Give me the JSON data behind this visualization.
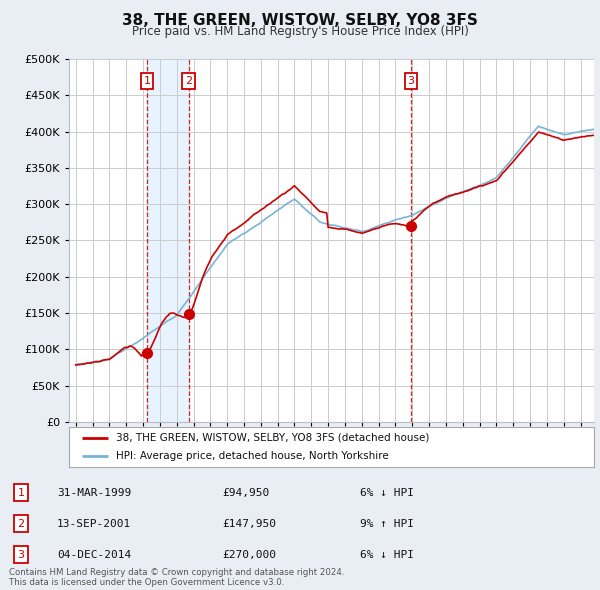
{
  "title": "38, THE GREEN, WISTOW, SELBY, YO8 3FS",
  "subtitle": "Price paid vs. HM Land Registry's House Price Index (HPI)",
  "legend_line1": "38, THE GREEN, WISTOW, SELBY, YO8 3FS (detached house)",
  "legend_line2": "HPI: Average price, detached house, North Yorkshire",
  "sale_color": "#cc0000",
  "hpi_color": "#7ab3d4",
  "hpi_fill_color": "#ddeeff",
  "background_color": "#e8eef4",
  "plot_bg_color": "#ffffff",
  "grid_color": "#cccccc",
  "shade_color": "#ddeeff",
  "sale_points": [
    {
      "date_num": 1999.24,
      "price": 94950,
      "label": "1"
    },
    {
      "date_num": 2001.71,
      "price": 147950,
      "label": "2"
    },
    {
      "date_num": 2014.92,
      "price": 270000,
      "label": "3"
    }
  ],
  "table_data": [
    {
      "num": "1",
      "date": "31-MAR-1999",
      "price": "£94,950",
      "hpi": "6% ↓ HPI"
    },
    {
      "num": "2",
      "date": "13-SEP-2001",
      "price": "£147,950",
      "hpi": "9% ↑ HPI"
    },
    {
      "num": "3",
      "date": "04-DEC-2014",
      "price": "£270,000",
      "hpi": "6% ↓ HPI"
    }
  ],
  "footer": "Contains HM Land Registry data © Crown copyright and database right 2024.\nThis data is licensed under the Open Government Licence v3.0.",
  "ylim": [
    0,
    500000
  ],
  "yticks": [
    0,
    50000,
    100000,
    150000,
    200000,
    250000,
    300000,
    350000,
    400000,
    450000,
    500000
  ],
  "vline_color": "#cc0000",
  "vline_style": "--"
}
